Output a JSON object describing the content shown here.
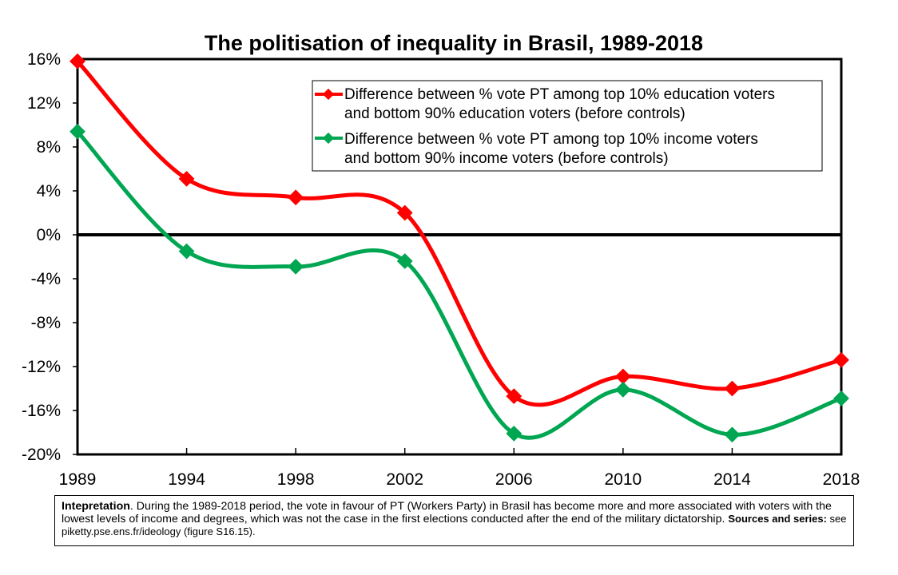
{
  "chart_data": {
    "type": "line",
    "title": "The politisation of inequality in Brasil, 1989-2018",
    "x": [
      "1989",
      "1994",
      "1998",
      "2002",
      "2006",
      "2010",
      "2014",
      "2018"
    ],
    "y_ticks": [
      "16%",
      "12%",
      "8%",
      "4%",
      "0%",
      "-4%",
      "-8%",
      "-12%",
      "-16%",
      "-20%"
    ],
    "ylim": [
      -20,
      16
    ],
    "grid": "none",
    "legend_position": "top-right",
    "series": [
      {
        "name_line1": "Difference between % vote PT among top 10% education voters",
        "name_line2": "and bottom 90% education voters (before controls)",
        "color": "#ff0000",
        "values": [
          15.8,
          5.1,
          3.4,
          2.0,
          -14.7,
          -12.9,
          -14.0,
          -11.4
        ]
      },
      {
        "name_line1": "Difference between % vote PT among top 10% income voters",
        "name_line2": "and bottom 90% income voters (before controls)",
        "color": "#00a651",
        "values": [
          9.4,
          -1.5,
          -2.9,
          -2.4,
          -18.1,
          -14.1,
          -18.2,
          -14.9
        ]
      }
    ]
  },
  "note": {
    "label": "Intepretation",
    "text": ". During the 1989-2018 period, the vote in favour of PT (Workers Party) in Brasil has become more and more associated with voters with the lowest levels of income and degrees, which was not the case in the first elections conducted after the end of the military dictatorship. ",
    "sources_label": "Sources and series:",
    "sources_text": " see piketty.pse.ens.fr/ideology (figure S16.15)."
  }
}
